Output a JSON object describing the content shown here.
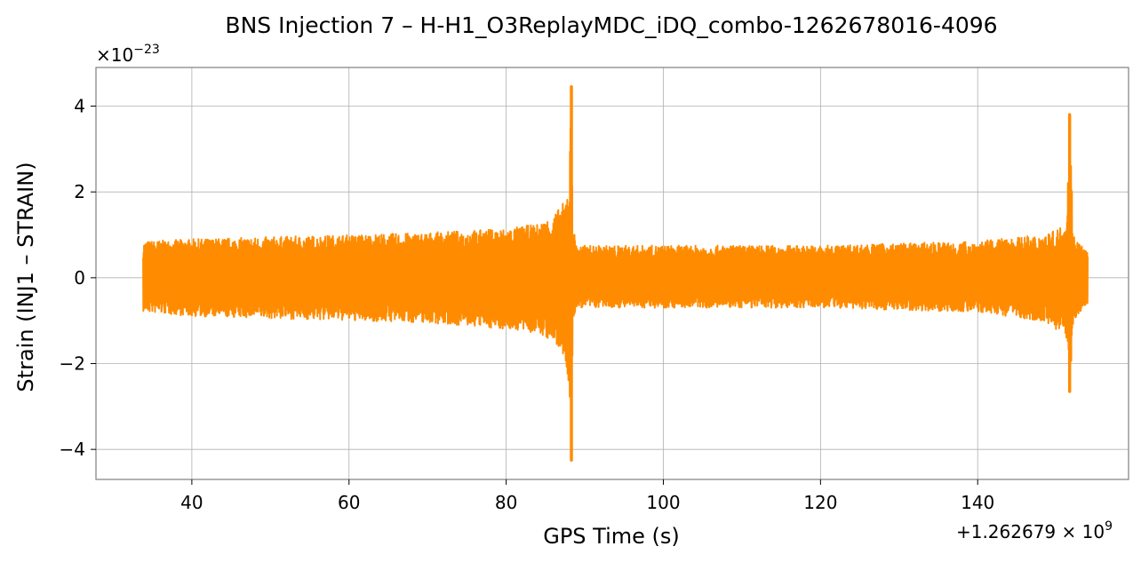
{
  "chart_data": {
    "type": "line",
    "title": "BNS Injection 7 – H-H1_O3ReplayMDC_iDQ_combo-1262678016-4096",
    "xlabel": "GPS Time (s)",
    "ylabel": "Strain (INJ1 – STRAIN)",
    "x_offset_text": {
      "prefix": "+1.262679 × 10",
      "exp": "9"
    },
    "y_offset_text": {
      "prefix": "×10",
      "exp": "−23"
    },
    "xlim": [
      27.8,
      159.2
    ],
    "ylim": [
      -4.7,
      4.9
    ],
    "x_ticks": [
      40,
      60,
      80,
      100,
      120,
      140
    ],
    "x_tick_labels": [
      "40",
      "60",
      "80",
      "100",
      "120",
      "140"
    ],
    "y_ticks": [
      -4,
      -2,
      0,
      2,
      4
    ],
    "y_tick_labels": [
      "−4",
      "−2",
      "0",
      "2",
      "4"
    ],
    "grid": true,
    "line_color": "#ff8c00",
    "data_range": [
      33.8,
      154.0
    ],
    "series": [
      {
        "envelope": {
          "x": [
            33.8,
            40,
            50,
            60,
            70,
            80,
            84,
            86,
            87.5,
            88.0,
            88.3,
            88.5,
            89,
            100,
            120,
            140,
            148,
            150,
            151.3,
            151.7,
            152.2,
            154.0
          ],
          "upper": [
            0.85,
            0.9,
            0.95,
            1.0,
            1.05,
            1.15,
            1.25,
            1.45,
            1.8,
            2.4,
            4.45,
            1.2,
            0.75,
            0.75,
            0.75,
            0.85,
            1.0,
            1.1,
            1.35,
            3.8,
            1.0,
            0.6
          ],
          "lower": [
            -0.8,
            -0.9,
            -0.95,
            -1.0,
            -1.05,
            -1.2,
            -1.3,
            -1.5,
            -1.9,
            -2.6,
            -4.25,
            -1.0,
            -0.7,
            -0.7,
            -0.7,
            -0.8,
            -1.0,
            -1.2,
            -1.5,
            -2.65,
            -1.0,
            -0.6
          ]
        }
      }
    ],
    "peaks": [
      {
        "x": 88.3,
        "max": 4.45,
        "min": -4.25
      },
      {
        "x": 151.7,
        "max": 3.8,
        "min": -2.65
      }
    ]
  }
}
